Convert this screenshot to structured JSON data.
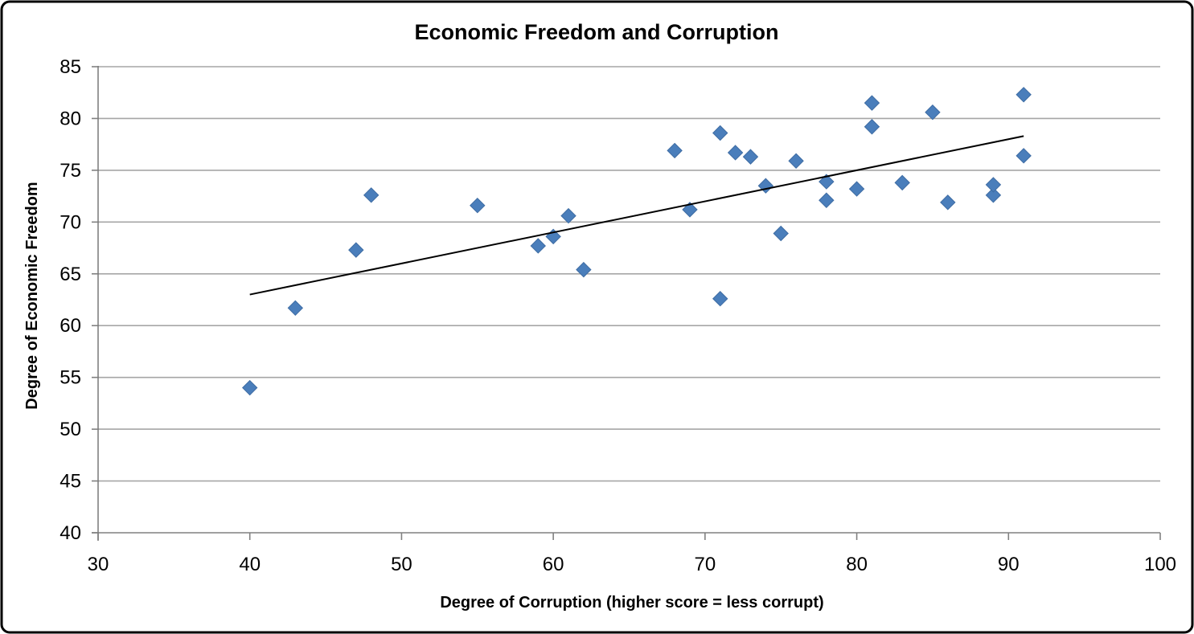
{
  "window": {
    "background": "#FFFFFF",
    "border_color": "#000000"
  },
  "chart_data": {
    "type": "scatter",
    "title": "Economic Freedom and Corruption",
    "xlabel": "Degree of Corruption (higher score = less corrupt)",
    "ylabel": "Degree of Economic Freedom",
    "xlim": [
      30,
      100
    ],
    "ylim": [
      40,
      85
    ],
    "x_ticks": [
      30,
      40,
      50,
      60,
      70,
      80,
      90,
      100
    ],
    "y_ticks": [
      40,
      45,
      50,
      55,
      60,
      65,
      70,
      75,
      80,
      85
    ],
    "grid": "horizontal-major",
    "legend_position": "none",
    "gridline_color": "#A6A6A6",
    "axis_color": "#808080",
    "marker": {
      "shape": "diamond",
      "fill": "#4A7EBB",
      "stroke": "#3E6CA3",
      "size": 18
    },
    "points": [
      [
        40,
        54.0
      ],
      [
        43,
        61.7
      ],
      [
        47,
        67.3
      ],
      [
        48,
        72.6
      ],
      [
        55,
        71.6
      ],
      [
        59,
        67.7
      ],
      [
        60,
        68.6
      ],
      [
        61,
        70.6
      ],
      [
        62,
        65.4
      ],
      [
        68,
        76.9
      ],
      [
        69,
        71.2
      ],
      [
        71,
        62.6
      ],
      [
        71,
        78.6
      ],
      [
        72,
        76.7
      ],
      [
        73,
        76.3
      ],
      [
        74,
        73.5
      ],
      [
        75,
        68.9
      ],
      [
        76,
        75.9
      ],
      [
        78,
        72.1
      ],
      [
        78,
        73.9
      ],
      [
        80,
        73.2
      ],
      [
        81,
        79.2
      ],
      [
        81,
        81.5
      ],
      [
        83,
        73.8
      ],
      [
        85,
        80.6
      ],
      [
        86,
        71.9
      ],
      [
        89,
        72.6
      ],
      [
        89,
        73.6
      ],
      [
        91,
        76.4
      ],
      [
        91,
        82.3
      ]
    ],
    "trendline": {
      "type": "linear",
      "x_start": 40,
      "y_start": 63.0,
      "x_end": 91,
      "y_end": 78.3,
      "color": "#000000"
    }
  }
}
